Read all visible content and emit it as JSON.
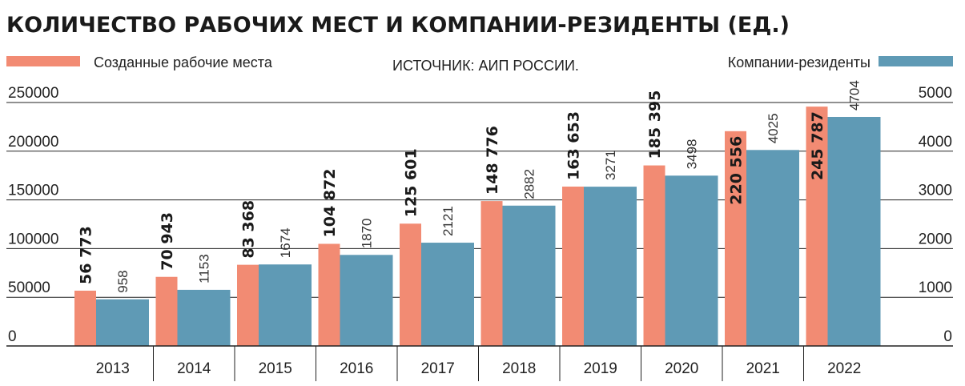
{
  "chart_data": {
    "type": "bar",
    "title": "КОЛИЧЕСТВО РАБОЧИХ МЕСТ И КОМПАНИИ-РЕЗИДЕНТЫ (ЕД.)",
    "source": "ИСТОЧНИК: АИП РОССИИ.",
    "categories": [
      "2013",
      "2014",
      "2015",
      "2016",
      "2017",
      "2018",
      "2019",
      "2020",
      "2021",
      "2022"
    ],
    "series": [
      {
        "name": "Созданные рабочие места",
        "axis": "left",
        "color": "#f28b73",
        "values": [
          56773,
          70943,
          83368,
          104872,
          125601,
          148776,
          163653,
          185395,
          220556,
          245787
        ],
        "labels": [
          "56 773",
          "70 943",
          "83 368",
          "104 872",
          "125 601",
          "148 776",
          "163 653",
          "185 395",
          "220 556",
          "245 787"
        ]
      },
      {
        "name": "Компании-резиденты",
        "axis": "right",
        "color": "#5f9ab5",
        "values": [
          958,
          1153,
          1674,
          1870,
          2121,
          2882,
          3271,
          3498,
          4025,
          4704
        ],
        "labels": [
          "958",
          "1153",
          "1674",
          "1870",
          "2121",
          "2882",
          "3271",
          "3498",
          "4025",
          "4704"
        ]
      }
    ],
    "y_left": {
      "ylim": [
        0,
        250000
      ],
      "ticks": [
        "0",
        "50000",
        "100000",
        "150000",
        "200000",
        "250000"
      ]
    },
    "y_right": {
      "ylim": [
        0,
        5000
      ],
      "ticks": [
        "0",
        "1000",
        "2000",
        "3000",
        "4000",
        "5000"
      ]
    },
    "grid": true,
    "legend": "top"
  }
}
